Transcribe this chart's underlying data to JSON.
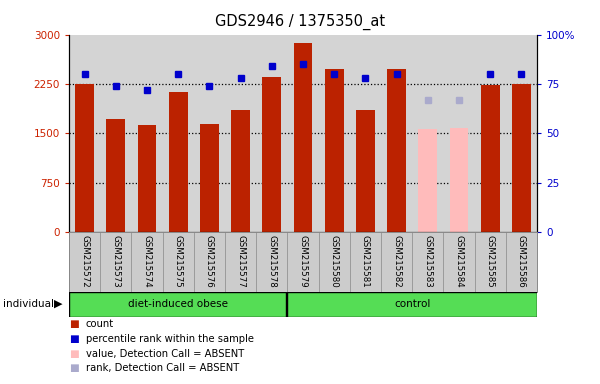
{
  "title": "GDS2946 / 1375350_at",
  "samples": [
    "GSM215572",
    "GSM215573",
    "GSM215574",
    "GSM215575",
    "GSM215576",
    "GSM215577",
    "GSM215578",
    "GSM215579",
    "GSM215580",
    "GSM215581",
    "GSM215582",
    "GSM215583",
    "GSM215584",
    "GSM215585",
    "GSM215586"
  ],
  "counts": [
    2250,
    1720,
    1630,
    2130,
    1650,
    1860,
    2360,
    2870,
    2470,
    1850,
    2470,
    1570,
    1580,
    2240,
    2250
  ],
  "ranks": [
    80,
    74,
    72,
    80,
    74,
    78,
    84,
    85,
    80,
    78,
    80,
    67,
    67,
    80,
    80
  ],
  "absent": [
    false,
    false,
    false,
    false,
    false,
    false,
    false,
    false,
    false,
    false,
    false,
    true,
    true,
    false,
    false
  ],
  "ylim_left": [
    0,
    3000
  ],
  "ylim_right": [
    0,
    100
  ],
  "yticks_left": [
    0,
    750,
    1500,
    2250,
    3000
  ],
  "ytick_labels_left": [
    "0",
    "750",
    "1500",
    "2250",
    "3000"
  ],
  "yticks_right": [
    0,
    25,
    50,
    75,
    100
  ],
  "ytick_labels_right": [
    "0",
    "25",
    "50",
    "75",
    "100%"
  ],
  "bar_color_present": "#bb2200",
  "bar_color_absent": "#ffbbbb",
  "rank_color_present": "#0000cc",
  "rank_color_absent": "#aaaacc",
  "plot_bg_color": "#d4d4d4",
  "label_bg_color": "#cccccc",
  "group_color": "#55dd55",
  "group1_label": "diet-induced obese",
  "group1_count": 7,
  "group2_label": "control",
  "group2_count": 8,
  "individual_label": "individual",
  "legend_items": [
    {
      "label": "count",
      "color": "#bb2200"
    },
    {
      "label": "percentile rank within the sample",
      "color": "#0000cc"
    },
    {
      "label": "value, Detection Call = ABSENT",
      "color": "#ffbbbb"
    },
    {
      "label": "rank, Detection Call = ABSENT",
      "color": "#aaaacc"
    }
  ]
}
